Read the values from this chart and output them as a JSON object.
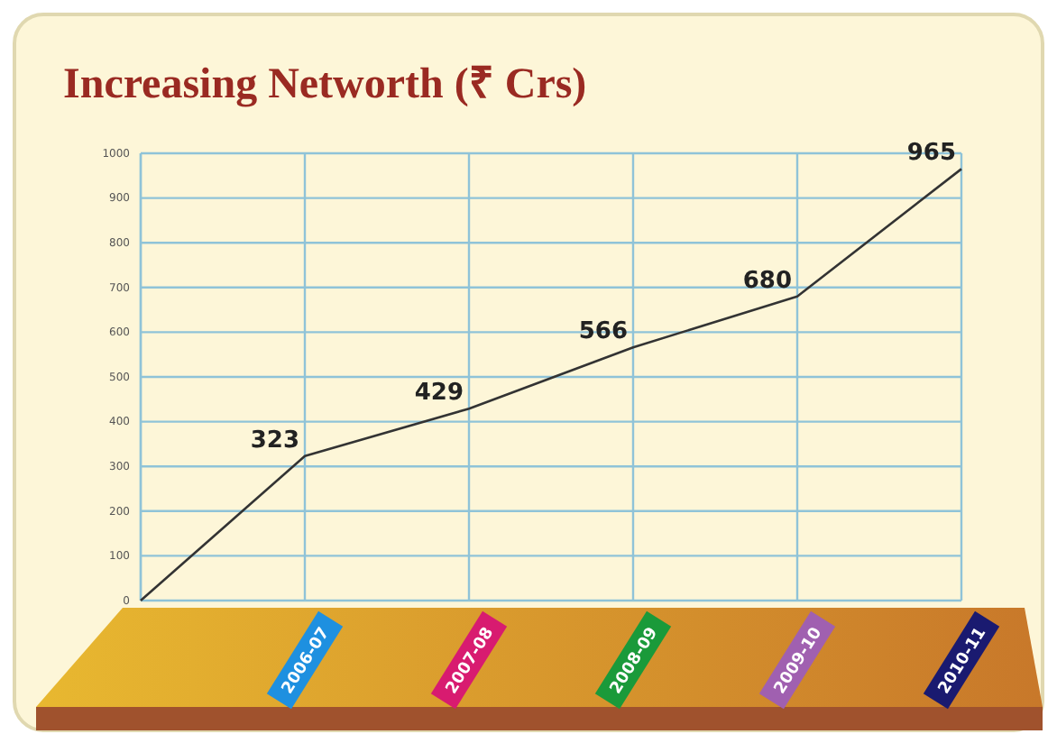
{
  "chart_data": {
    "type": "line",
    "title": "Increasing Networth (₹ Crs)",
    "categories": [
      null,
      "2006-07",
      "2007-08",
      "2008-09",
      "2009-10",
      "2010-11"
    ],
    "values": [
      0,
      323,
      429,
      566,
      680,
      965
    ],
    "value_labels": [
      null,
      "323",
      "429",
      "566",
      "680",
      "965"
    ],
    "color": "#333333",
    "ylim": [
      0,
      1000
    ],
    "yticks": [
      0,
      100,
      200,
      300,
      400,
      500,
      600,
      700,
      800,
      900,
      1000
    ],
    "grid": true,
    "marker": "none",
    "line_style": "solid"
  }
}
